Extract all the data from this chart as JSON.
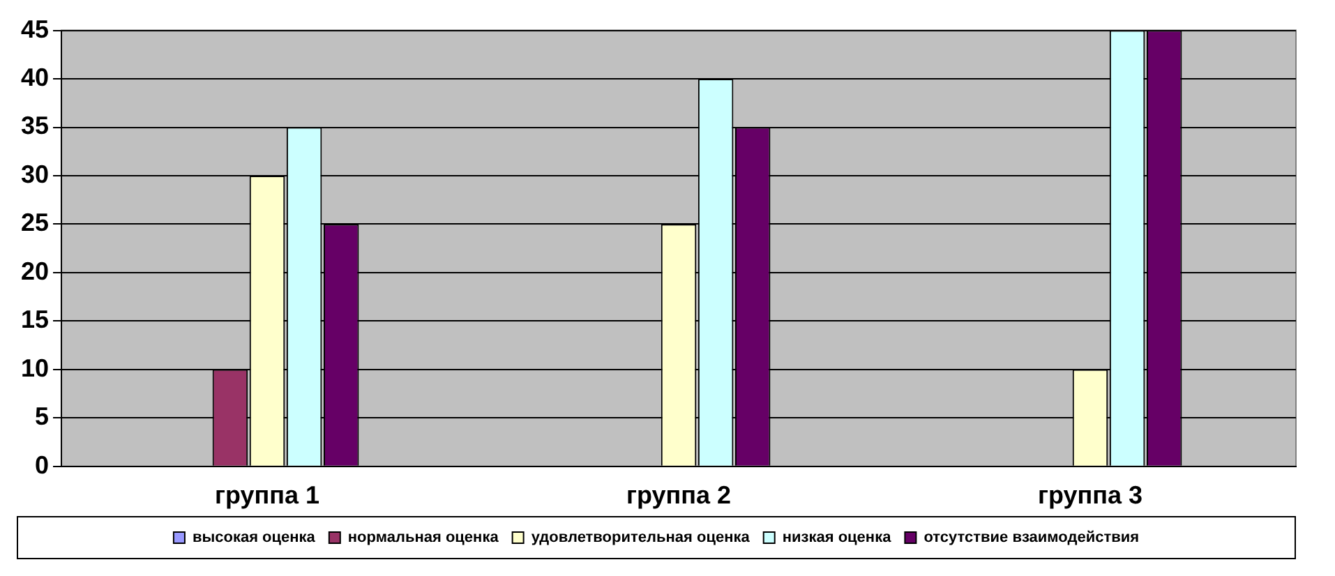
{
  "chart_data": {
    "type": "bar",
    "categories": [
      "группа 1",
      "группа 2",
      "группа 3"
    ],
    "series": [
      {
        "name": "высокая оценка",
        "color": "#9999ff",
        "values": [
          0,
          0,
          0
        ]
      },
      {
        "name": "нормальная оценка",
        "color": "#993366",
        "values": [
          10,
          0,
          0
        ]
      },
      {
        "name": "удовлетворительная оценка",
        "color": "#ffffcc",
        "values": [
          30,
          25,
          10
        ]
      },
      {
        "name": "низкая оценка",
        "color": "#ccffff",
        "values": [
          35,
          40,
          45
        ]
      },
      {
        "name": "отсутствие взаимодействия",
        "color": "#660066",
        "values": [
          25,
          35,
          45
        ]
      }
    ],
    "ylim": [
      0,
      45
    ],
    "yticks": [
      0,
      5,
      10,
      15,
      20,
      25,
      30,
      35,
      40,
      45
    ],
    "grid": "y",
    "legend": "bottom"
  }
}
